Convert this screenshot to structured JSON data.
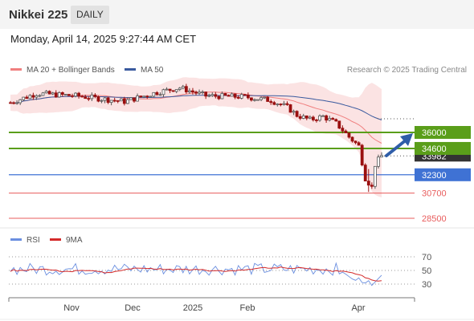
{
  "header": {
    "title": "Nikkei 225",
    "period_badge": "DAILY"
  },
  "timestamp": "Monday, April 14, 2025 9:27:44 AM CET",
  "legend": {
    "bollinger": "MA 20 + Bollinger Bands",
    "ma50": "MA 50",
    "copyright": "Research © 2025 Trading Central",
    "rsi": "RSI",
    "rsi_ma": "9MA"
  },
  "colors": {
    "resistance": "#5a9e1a",
    "pivot": "#3f72d4",
    "support": "#e85c5c",
    "candle_up": "#555555",
    "candle_down": "#9a1010",
    "bollinger_band": "#fbe3e3",
    "ma20": "#f07f7f",
    "ma50": "#3a5a9e",
    "rsi": "#6b8fe0",
    "rsi_ma": "#d42a2a",
    "arrow": "#2f5da8"
  },
  "chart_data": [
    {
      "type": "candlestick",
      "title": "Nikkei 225",
      "x_axis_labels": [
        "Nov",
        "Dec",
        "2025",
        "Feb",
        "Apr"
      ],
      "current_price_label": "33982",
      "price_levels": [
        {
          "label": "36000",
          "value": 36000,
          "kind": "resistance"
        },
        {
          "label": "34600",
          "value": 34600,
          "kind": "resistance"
        },
        {
          "label": "32300",
          "value": 32300,
          "kind": "pivot"
        },
        {
          "label": "30700",
          "value": 30700,
          "kind": "support"
        },
        {
          "label": "28500",
          "value": 28500,
          "kind": "support"
        }
      ],
      "series": [
        {
          "name": "MA 20 + Bollinger Bands"
        },
        {
          "name": "MA 50"
        }
      ],
      "overview": {
        "approx_range_oct_to_mar": [
          37200,
          40200
        ],
        "april_low_approx": 30800,
        "last_close_approx": 33982
      },
      "projection": "upward arrow toward 36000"
    },
    {
      "type": "line",
      "title": "RSI",
      "series": [
        {
          "name": "RSI"
        },
        {
          "name": "9MA"
        }
      ],
      "y_ticks": [
        70,
        50,
        30
      ],
      "ylim": [
        10,
        90
      ]
    }
  ]
}
